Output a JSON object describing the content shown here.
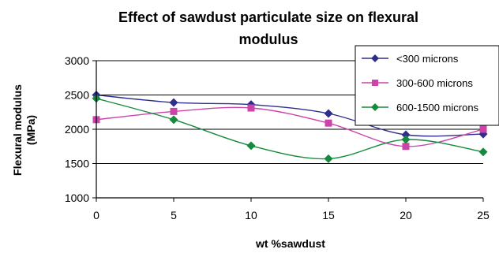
{
  "chart_data": {
    "type": "line",
    "title": "Effect of  sawdust particulate size on flexural modulus",
    "title_lines": [
      "Effect of  sawdust particulate size on flexural",
      "modulus"
    ],
    "xlabel": "wt %sawdust",
    "ylabel_lines": [
      "Flexural modulus",
      "(MPa)"
    ],
    "x": [
      0,
      5,
      10,
      15,
      20,
      25
    ],
    "x_ticks": [
      "0",
      "5",
      "10",
      "15",
      "20",
      "25"
    ],
    "ylim": [
      1000,
      3000
    ],
    "y_ticks": [
      "1000",
      "1500",
      "2000",
      "2500",
      "3000"
    ],
    "grid": true,
    "legend_position": "top-right",
    "series": [
      {
        "name": "<300 microns",
        "marker": "diamond",
        "color": "#2e2e8c",
        "values": [
          2500,
          2390,
          2360,
          2230,
          1920,
          1930
        ]
      },
      {
        "name": "300-600 microns",
        "marker": "square",
        "color": "#cc44aa",
        "values": [
          2140,
          2260,
          2310,
          2090,
          1750,
          2000
        ]
      },
      {
        "name": "600-1500 microns",
        "marker": "diamond",
        "color": "#168a3c",
        "values": [
          2450,
          2140,
          1760,
          1570,
          1850,
          1670
        ]
      }
    ]
  }
}
